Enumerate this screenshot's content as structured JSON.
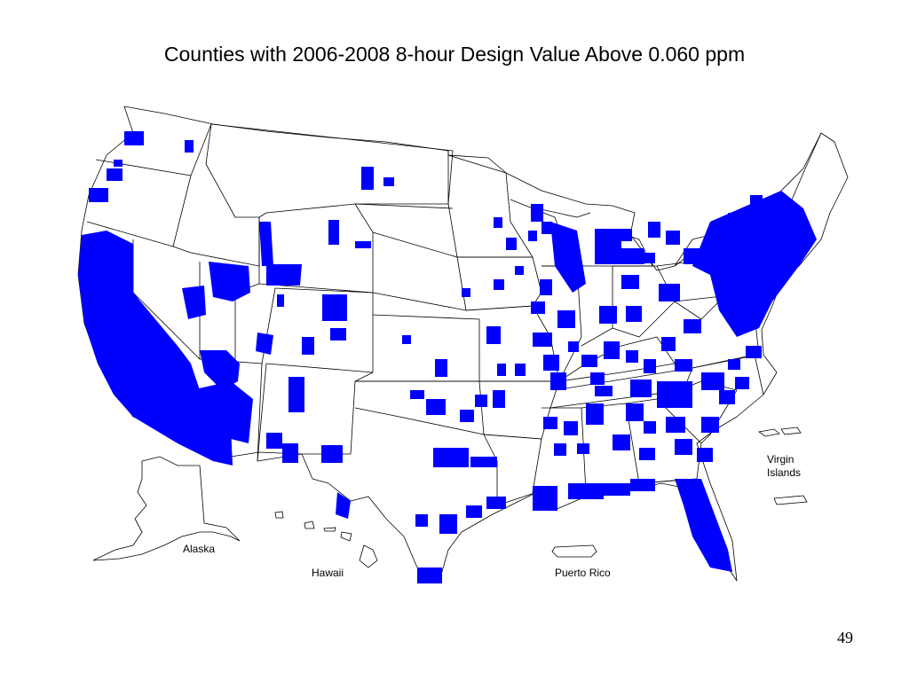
{
  "slide": {
    "title": "Counties with 2006-2008 8-hour Design Value Above 0.060 ppm",
    "page_number": "49"
  },
  "map": {
    "fill_color": "#0000ff",
    "outline_color": "#000000",
    "background": "#ffffff",
    "labels": {
      "alaska": "Alaska",
      "hawaii": "Hawaii",
      "puerto_rico": "Puerto Rico",
      "virgin_islands_line1": "Virgin",
      "virgin_islands_line2": "Islands"
    }
  }
}
